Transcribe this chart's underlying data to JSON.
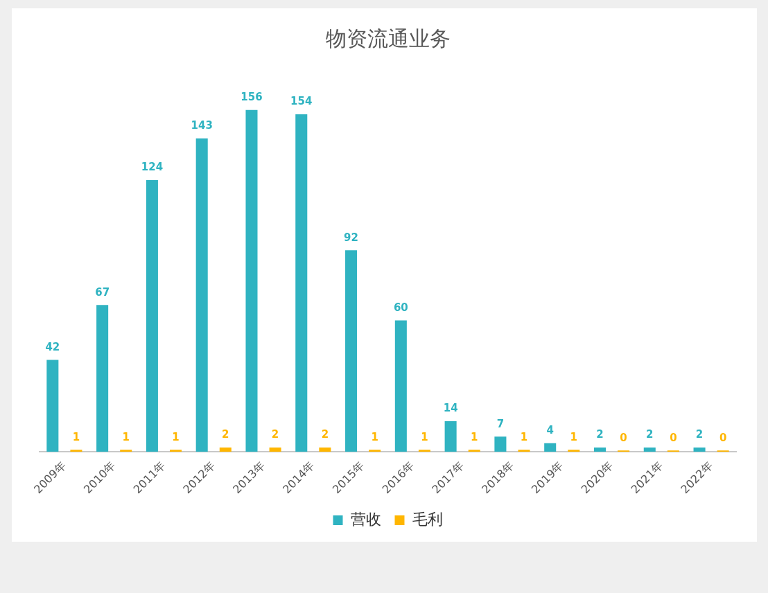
{
  "chart_data": {
    "type": "bar",
    "title": "物资流通业务",
    "categories": [
      "2009年",
      "2010年",
      "2011年",
      "2012年",
      "2013年",
      "2014年",
      "2015年",
      "2016年",
      "2017年",
      "2018年",
      "2019年",
      "2020年",
      "2021年",
      "2022年"
    ],
    "series": [
      {
        "name": "营收",
        "color": "#2fb3c1",
        "values": [
          42,
          67,
          124,
          143,
          156,
          154,
          92,
          60,
          14,
          7,
          4,
          2,
          2,
          2
        ]
      },
      {
        "name": "毛利",
        "color": "#ffb600",
        "values": [
          1,
          1,
          1,
          2,
          2,
          2,
          1,
          1,
          1,
          1,
          1,
          0,
          0,
          0
        ]
      }
    ],
    "data_labels": true,
    "legend": "bottom",
    "grid": false
  }
}
